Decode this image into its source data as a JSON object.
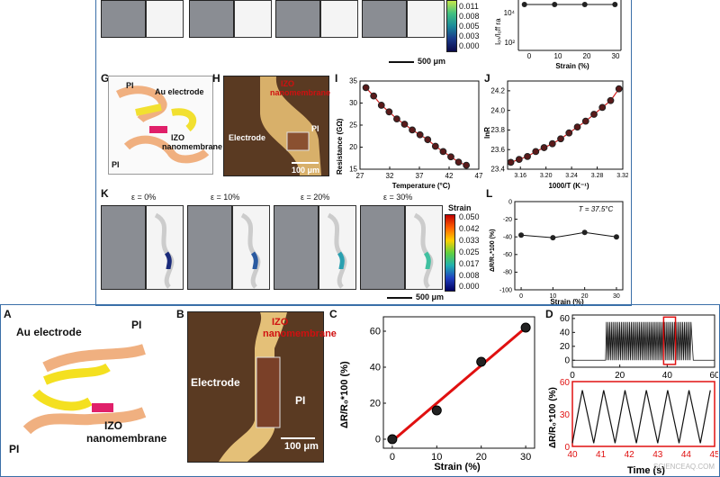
{
  "colorbar_top": {
    "ticks": [
      "0.011",
      "0.008",
      "0.005",
      "0.003",
      "0.000"
    ]
  },
  "scalebar_top": "500 μm",
  "panel_top_right": {
    "ylabel": "Iₒₙ/Iₒff ra",
    "yticks": [
      "10⁴",
      "10²"
    ],
    "xticks": [
      "0",
      "10",
      "20",
      "30"
    ],
    "xlabel": "Strain (%)"
  },
  "panel_G": {
    "label": "G",
    "pi_top": "PI",
    "au": "Au electrode",
    "izo": "IZO",
    "nano": "nanomembrane",
    "pi_bottom": "PI"
  },
  "panel_H": {
    "label": "H",
    "izo": "IZO",
    "nano": "nanomembrane",
    "electrode": "Electrode",
    "pi": "PI",
    "scale": "100 μm"
  },
  "panel_I": {
    "label": "I",
    "ylabel": "Resistance (GΩ)",
    "xlabel": "Temperature (°C)",
    "yticks": [
      "35",
      "30",
      "25",
      "20",
      "15"
    ],
    "xticks": [
      "27",
      "32",
      "37",
      "42",
      "47"
    ]
  },
  "panel_J": {
    "label": "J",
    "ylabel": "lnR",
    "xlabel": "1000/T (K⁻¹)",
    "yticks": [
      "24.2",
      "24.0",
      "23.8",
      "23.6",
      "23.4"
    ],
    "xticks": [
      "3.16",
      "3.20",
      "3.24",
      "3.28",
      "3.32"
    ]
  },
  "panel_K": {
    "label": "K",
    "strains": [
      "ε = 0%",
      "ε = 10%",
      "ε = 20%",
      "ε = 30%"
    ],
    "cbar_title": "Strain",
    "cbar_ticks": [
      "0.050",
      "0.042",
      "0.033",
      "0.025",
      "0.017",
      "0.008",
      "0.000"
    ],
    "scale": "500 μm"
  },
  "panel_L": {
    "label": "L",
    "annotation": "T = 37.5°C",
    "ylabel": "ΔR/R₀*100 (%)",
    "xlabel": "Strain (%)",
    "yticks": [
      "0",
      "-20",
      "-40",
      "-60",
      "-80",
      "-100"
    ],
    "xticks": [
      "0",
      "10",
      "20",
      "30"
    ]
  },
  "panel_A": {
    "label": "A",
    "au": "Au electrode",
    "pi_top": "PI",
    "izo": "IZO",
    "nano": "nanomembrane",
    "pi_bottom": "PI"
  },
  "panel_B": {
    "label": "B",
    "izo": "IZO",
    "nano": "nanomembrane",
    "electrode": "Electrode",
    "pi": "PI",
    "scale": "100 μm"
  },
  "panel_C": {
    "label": "C",
    "ylabel": "ΔR/R₀*100 (%)",
    "xlabel": "Strain (%)",
    "yticks": [
      "60",
      "40",
      "20",
      "0"
    ],
    "xticks": [
      "0",
      "10",
      "20",
      "30"
    ]
  },
  "panel_D": {
    "label": "D",
    "yticks_top": [
      "60",
      "40",
      "20",
      "0"
    ],
    "xticks_top": [
      "0",
      "20",
      "40",
      "60"
    ],
    "yticks_bottom": [
      "60",
      "30",
      "0"
    ],
    "xticks_bottom": [
      "40",
      "41",
      "42",
      "43",
      "44",
      "45"
    ],
    "ylabel": "ΔR/R₀*100 (%)",
    "xlabel": "Time (s)"
  },
  "watermark": "SCIENCEAQ.COM",
  "chart_data": [
    {
      "type": "scatter",
      "title": "",
      "xlabel": "Temperature (°C)",
      "ylabel": "Resistance (GΩ)",
      "xlim": [
        27,
        47
      ],
      "ylim": [
        15,
        35
      ],
      "x": [
        28,
        29.3,
        30.6,
        31.9,
        33.2,
        34.5,
        35.8,
        37.1,
        38.4,
        39.7,
        41,
        42.3,
        43.6,
        44.9
      ],
      "y": [
        33.5,
        31.6,
        29.5,
        28.0,
        26.4,
        25.2,
        23.9,
        22.8,
        21.7,
        20.2,
        19.0,
        17.8,
        16.6,
        15.9
      ]
    },
    {
      "type": "scatter",
      "title": "",
      "xlabel": "1000/T (K⁻¹)",
      "ylabel": "lnR",
      "xlim": [
        3.14,
        3.32
      ],
      "ylim": [
        23.4,
        24.3
      ],
      "x": [
        3.145,
        3.158,
        3.171,
        3.184,
        3.197,
        3.21,
        3.223,
        3.236,
        3.249,
        3.262,
        3.275,
        3.288,
        3.301,
        3.314
      ],
      "y": [
        23.47,
        23.5,
        23.53,
        23.58,
        23.62,
        23.66,
        23.71,
        23.77,
        23.83,
        23.89,
        23.96,
        24.03,
        24.1,
        24.22
      ]
    },
    {
      "type": "line",
      "title": "",
      "xlabel": "Strain (%)",
      "ylabel": "ΔR/R₀*100 (%)",
      "xlim": [
        -2,
        32
      ],
      "ylim": [
        -100,
        0
      ],
      "x": [
        0,
        10,
        20,
        30
      ],
      "y": [
        -38,
        -41,
        -35,
        -40
      ]
    },
    {
      "type": "scatter",
      "title": "",
      "xlabel": "Strain (%)",
      "ylabel": "ΔR/R₀*100 (%)",
      "xlim": [
        -2,
        32
      ],
      "ylim": [
        -5,
        68
      ],
      "x": [
        0,
        10,
        20,
        30
      ],
      "y": [
        0,
        16,
        43,
        62
      ]
    },
    {
      "type": "scatter",
      "title": "",
      "xlabel": "Strain (%)",
      "ylabel": "",
      "xlim": [
        -2,
        32
      ],
      "x": [
        0,
        10,
        20,
        30
      ],
      "y": [
        1,
        1,
        1,
        1
      ]
    },
    {
      "type": "line",
      "title": "",
      "xlabel": "Time (s)",
      "ylabel": "ΔR/R₀*100 (%)",
      "xlim": [
        0,
        60
      ],
      "ylim": [
        -10,
        65
      ],
      "x": [
        0,
        12,
        14,
        50,
        52,
        60
      ],
      "y": [
        0,
        0,
        "oscillating 0–55",
        "oscillating 0–55",
        0,
        0
      ]
    },
    {
      "type": "line",
      "title": "",
      "xlabel": "Time (s)",
      "ylabel": "ΔR/R₀*100 (%)",
      "xlim": [
        40,
        45
      ],
      "ylim": [
        0,
        60
      ],
      "x": [
        40,
        40.35,
        40.75,
        41.1,
        41.5,
        41.85,
        42.25,
        42.6,
        43.0,
        43.35,
        43.75,
        44.1,
        44.5,
        44.85
      ],
      "y": [
        3,
        52,
        3,
        52,
        3,
        52,
        3,
        52,
        3,
        52,
        3,
        52,
        3,
        52
      ]
    }
  ]
}
